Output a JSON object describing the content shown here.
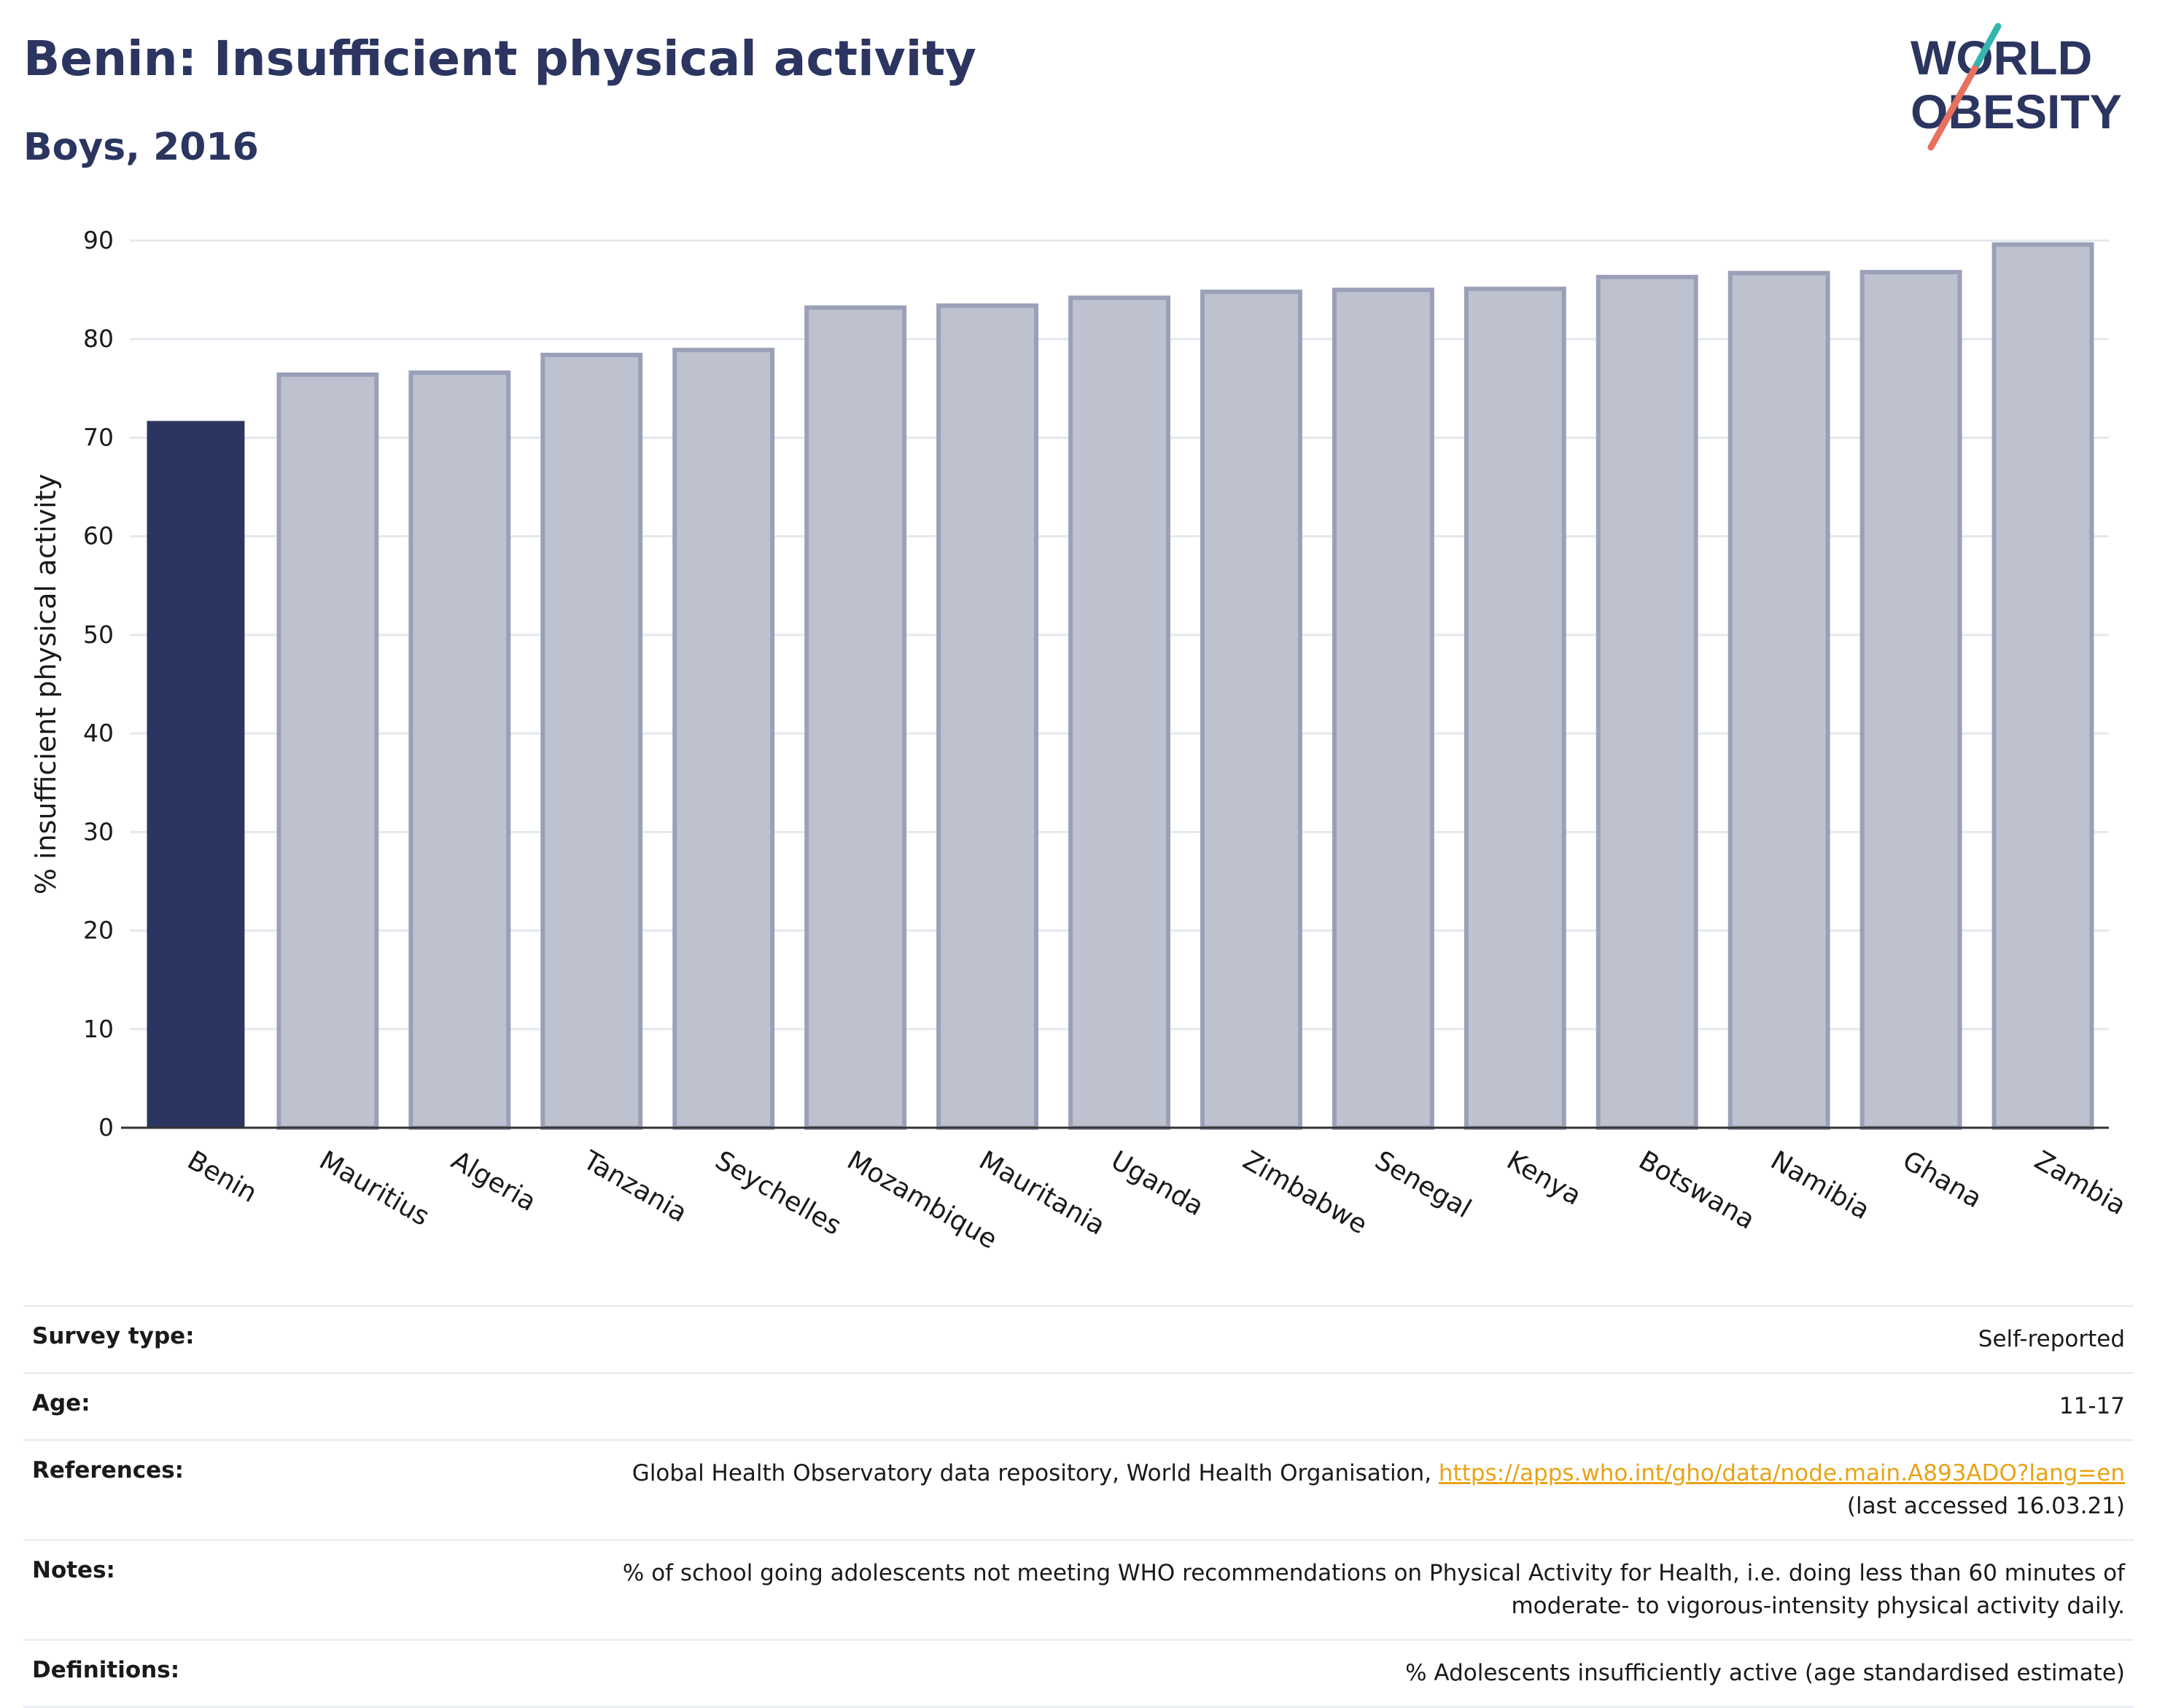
{
  "header": {
    "title": "Benin: Insufficient physical activity",
    "subtitle": "Boys, 2016"
  },
  "logo": {
    "line1": "WORLD",
    "line2": "OBESITY",
    "colors": {
      "text": "#2b3560",
      "accent_teal": "#35b5b0",
      "accent_coral": "#e8705f"
    }
  },
  "chart_data": {
    "type": "bar",
    "categories": [
      "Benin",
      "Mauritius",
      "Algeria",
      "Tanzania",
      "Seychelles",
      "Mozambique",
      "Mauritania",
      "Uganda",
      "Zimbabwe",
      "Senegal",
      "Kenya",
      "Botswana",
      "Namibia",
      "Ghana",
      "Zambia"
    ],
    "values": [
      71.7,
      76.4,
      76.6,
      78.4,
      78.9,
      83.2,
      83.4,
      84.2,
      84.8,
      85.0,
      85.1,
      86.3,
      86.7,
      86.8,
      89.6
    ],
    "highlight": "Benin",
    "ylabel": "% insufficient physical activity",
    "xlabel": "",
    "ylim": [
      0,
      90
    ],
    "yticks": [
      0,
      10,
      20,
      30,
      40,
      50,
      60,
      70,
      80,
      90
    ],
    "grid": true,
    "colors": {
      "highlight_fill": "#2b3560",
      "bar_fill": "#bec2cf",
      "bar_stroke": "#9aa0b8",
      "grid": "#e6e8ef",
      "axis": "#333333"
    }
  },
  "info_table": [
    {
      "label": "Survey type:",
      "value": "Self-reported"
    },
    {
      "label": "Age:",
      "value": "11-17"
    },
    {
      "label": "References:",
      "value": "Global Health Observatory data repository, World Health Organisation, ",
      "link": "https://apps.who.int/gho/data/node.main.A893ADO?lang=en",
      "value_after": "(last accessed 16.03.21)"
    },
    {
      "label": "Notes:",
      "value": "% of school going adolescents not meeting WHO recommendations on Physical Activity for Health, i.e. doing less than 60 minutes of moderate- to vigorous-intensity physical activity daily."
    },
    {
      "label": "Definitions:",
      "value": "% Adolescents insufficiently active (age standardised estimate)"
    }
  ]
}
